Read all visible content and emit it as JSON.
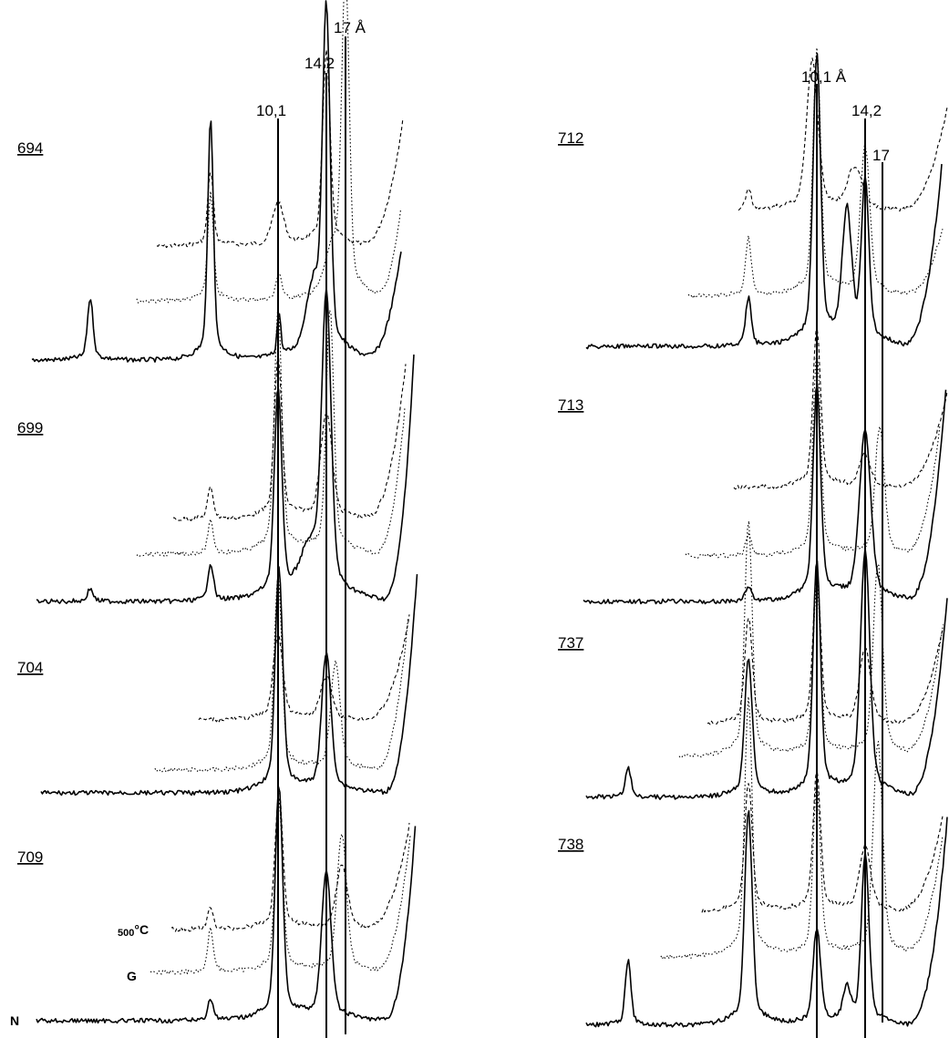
{
  "chart_data": {
    "type": "line",
    "panels": [
      {
        "peak_labels": [
          "10,1",
          "14,2",
          "17 Å"
        ],
        "traces": [
          {
            "sample": "694"
          },
          {
            "sample": "699"
          },
          {
            "sample": "704"
          },
          {
            "sample": "709"
          }
        ],
        "treatment_labels": {
          "n": "N",
          "g": "G",
          "heated_num": "500",
          "heated_unit": "°C"
        }
      },
      {
        "peak_labels": [
          "10,1 Å",
          "14,2",
          "17"
        ],
        "traces": [
          {
            "sample": "712"
          },
          {
            "sample": "713"
          },
          {
            "sample": "737"
          },
          {
            "sample": "738"
          }
        ]
      }
    ],
    "series": [
      {
        "name": "N",
        "style": "solid"
      },
      {
        "name": "G",
        "style": "dotted"
      },
      {
        "name": "500°C",
        "style": "dashed"
      }
    ],
    "legend": "none",
    "grid": false
  },
  "colors": {
    "ink": "#000000",
    "background": "#ffffff"
  }
}
